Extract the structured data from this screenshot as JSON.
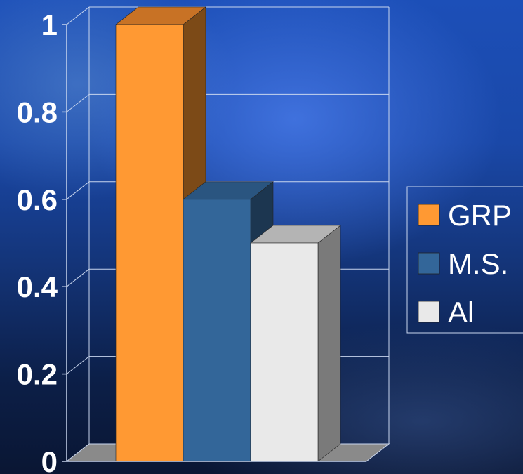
{
  "chart_data": {
    "type": "bar",
    "style": "3d-clustered-column",
    "categories": [
      "GRP",
      "M.S.",
      "Al"
    ],
    "values": [
      1.0,
      0.6,
      0.5
    ],
    "ylim": [
      0,
      1
    ],
    "yticks": [
      "0",
      "0.2",
      "0.4",
      "0.6",
      "0.8",
      "1"
    ],
    "ytick_values": [
      0,
      0.2,
      0.4,
      0.6,
      0.8,
      1
    ],
    "grid": true,
    "legend": "right",
    "legend_entries": [
      "GRP",
      "M.S.",
      "Al"
    ],
    "colors": {
      "GRP": {
        "front": "#ff9933",
        "top": "#c87225",
        "side": "#7c4a17"
      },
      "M.S.": {
        "front": "#336699",
        "top": "#2a5580",
        "side": "#1c3650"
      },
      "Al": {
        "front": "#e9e9e9",
        "top": "#b4b4b4",
        "side": "#7a7a7a"
      }
    },
    "gridline_color": "#c9d6ee",
    "floor_color": "#8a8a8a"
  }
}
